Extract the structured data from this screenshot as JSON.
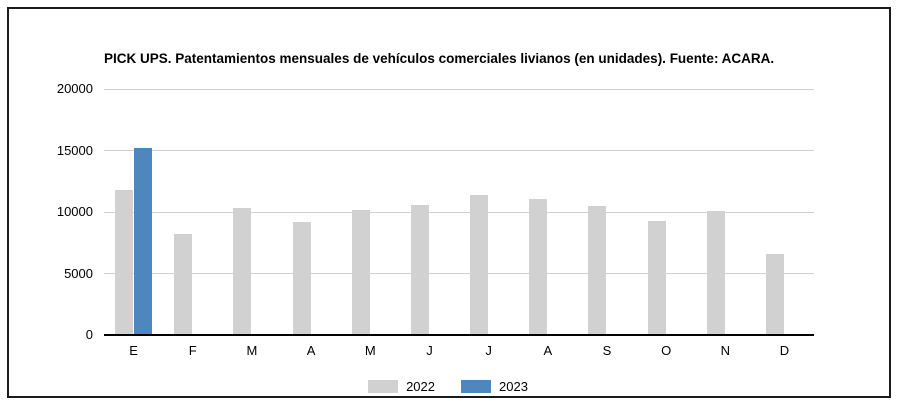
{
  "chart_data": {
    "type": "bar",
    "title": "PICK UPS. Patentamientos mensuales de vehículos comerciales livianos (en unidades). Fuente: ACARA.",
    "categories": [
      "E",
      "F",
      "M",
      "A",
      "M",
      "J",
      "J",
      "A",
      "S",
      "O",
      "N",
      "D"
    ],
    "series": [
      {
        "name": "2022",
        "color": "#d1d1d1",
        "values": [
          11800,
          8250,
          10300,
          9200,
          10200,
          10600,
          11400,
          11050,
          10500,
          9300,
          10050,
          6550
        ]
      },
      {
        "name": "2023",
        "color": "#4e87be",
        "values": [
          15200,
          null,
          null,
          null,
          null,
          null,
          null,
          null,
          null,
          null,
          null,
          null
        ]
      }
    ],
    "xlabel": "",
    "ylabel": "",
    "ylim": [
      0,
      20000
    ],
    "yticks": [
      0,
      5000,
      10000,
      15000,
      20000
    ],
    "grid": true,
    "legend_position": "bottom"
  },
  "colors": {
    "background": "#ffffff",
    "frame_border": "#1b1b1b",
    "gridline": "#d0d0d0",
    "axis_line": "#000000",
    "text": "#000000",
    "series_2022": "#d1d1d1",
    "series_2023": "#4e87be"
  }
}
